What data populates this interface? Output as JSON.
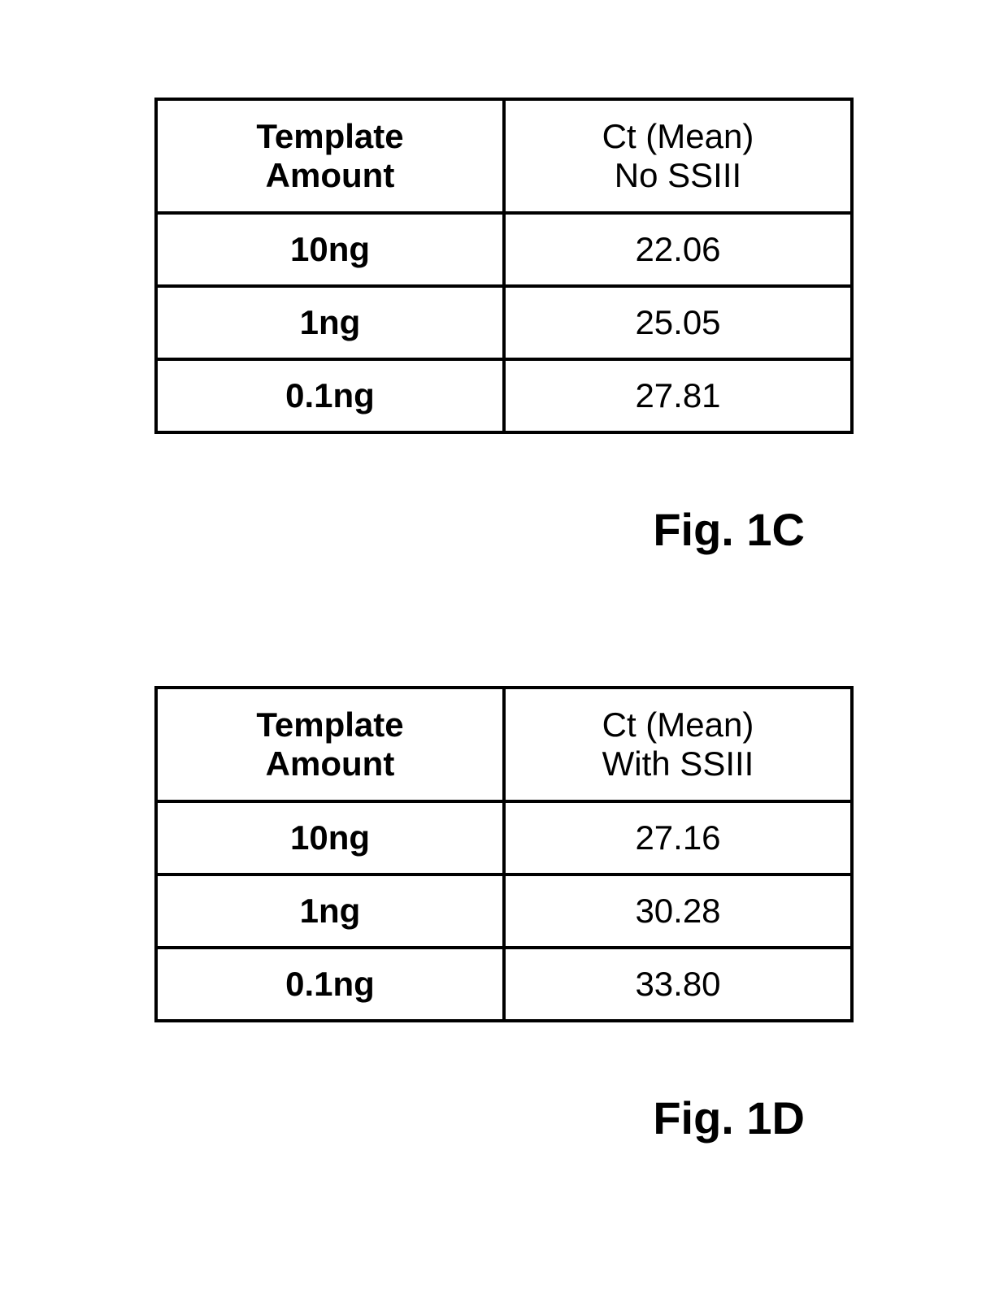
{
  "figure_c": {
    "type": "table",
    "caption": "Fig. 1C",
    "columns": [
      "Template\nAmount",
      "Ct (Mean)\nNo SSIII"
    ],
    "col_left_fontweight": "bold",
    "col_right_fontweight": "normal",
    "rows": [
      {
        "template": "10ng",
        "ct": "22.06"
      },
      {
        "template": "1ng",
        "ct": "25.05"
      },
      {
        "template": "0.1ng",
        "ct": "27.81"
      }
    ],
    "border_color": "#000000",
    "border_width": 4,
    "header_fontsize": 42,
    "cell_fontsize": 42,
    "caption_fontsize": 56,
    "background_color": "#ffffff"
  },
  "figure_d": {
    "type": "table",
    "caption": "Fig. 1D",
    "columns": [
      "Template\nAmount",
      "Ct (Mean)\nWith SSIII"
    ],
    "col_left_fontweight": "bold",
    "col_right_fontweight": "normal",
    "rows": [
      {
        "template": "10ng",
        "ct": "27.16"
      },
      {
        "template": "1ng",
        "ct": "30.28"
      },
      {
        "template": "0.1ng",
        "ct": "33.80"
      }
    ],
    "border_color": "#000000",
    "border_width": 4,
    "header_fontsize": 42,
    "cell_fontsize": 42,
    "caption_fontsize": 56,
    "background_color": "#ffffff"
  }
}
